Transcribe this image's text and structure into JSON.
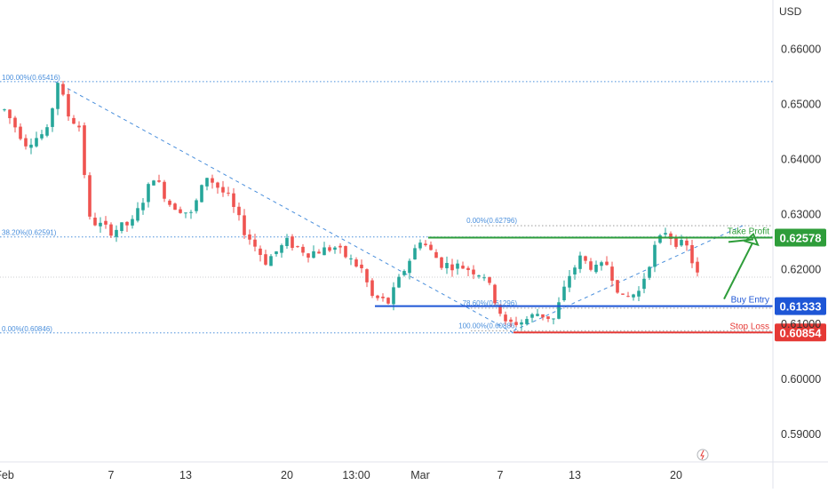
{
  "chart_data": {
    "type": "candlestick",
    "currency": "USD",
    "ylim": [
      0.585,
      0.669
    ],
    "y_ticks": [
      "0.66000",
      "0.65000",
      "0.64000",
      "0.63000",
      "0.62000",
      "0.61000",
      "0.60000",
      "0.59000"
    ],
    "y_tick_values": [
      0.66,
      0.65,
      0.64,
      0.63,
      0.62,
      0.61,
      0.6,
      0.59
    ],
    "x_ticks": [
      {
        "label": "Feb",
        "bar": 0
      },
      {
        "label": "7",
        "bar": 20
      },
      {
        "label": "13",
        "bar": 34
      },
      {
        "label": "20",
        "bar": 53
      },
      {
        "label": "13:00",
        "bar": 66
      },
      {
        "label": "Mar",
        "bar": 78
      },
      {
        "label": "7",
        "bar": 93
      },
      {
        "label": "13",
        "bar": 107
      },
      {
        "label": "20",
        "bar": 126
      }
    ],
    "bar_count": 140,
    "price_path": [
      [
        0,
        0.649
      ],
      [
        4,
        0.643
      ],
      [
        8,
        0.645
      ],
      [
        10,
        0.6542
      ],
      [
        12,
        0.648
      ],
      [
        14,
        0.646
      ],
      [
        16,
        0.629
      ],
      [
        20,
        0.627
      ],
      [
        24,
        0.6285
      ],
      [
        28,
        0.637
      ],
      [
        31,
        0.632
      ],
      [
        35,
        0.63
      ],
      [
        38,
        0.637
      ],
      [
        42,
        0.633
      ],
      [
        45,
        0.627
      ],
      [
        49,
        0.6215
      ],
      [
        53,
        0.625
      ],
      [
        57,
        0.623
      ],
      [
        62,
        0.624
      ],
      [
        67,
        0.62
      ],
      [
        69,
        0.615
      ],
      [
        72,
        0.614
      ],
      [
        75,
        0.62
      ],
      [
        78,
        0.6255
      ],
      [
        82,
        0.621
      ],
      [
        86,
        0.6205
      ],
      [
        90,
        0.619
      ],
      [
        94,
        0.61
      ],
      [
        97,
        0.6105
      ],
      [
        100,
        0.612
      ],
      [
        103,
        0.611
      ],
      [
        106,
        0.619
      ],
      [
        108,
        0.622
      ],
      [
        111,
        0.62
      ],
      [
        113,
        0.621
      ],
      [
        116,
        0.6145
      ],
      [
        119,
        0.616
      ],
      [
        122,
        0.624
      ],
      [
        124,
        0.627
      ],
      [
        126,
        0.625
      ],
      [
        128,
        0.624
      ],
      [
        130,
        0.619
      ]
    ],
    "fib_top": {
      "levels": [
        {
          "label": "100.00%(0.65416)",
          "value": 0.65416
        },
        {
          "label": "38.20%(0.62591)",
          "value": 0.62591
        },
        {
          "label": "0.00%(0.60846)",
          "value": 0.60846
        }
      ]
    },
    "fib_bottom": {
      "levels": [
        {
          "label": "0.00%(0.62796)",
          "value": 0.62796
        },
        {
          "label": "78.60%(0.61296)",
          "value": 0.61296
        },
        {
          "label": "100.00%(0.60886)",
          "value": 0.60886
        }
      ]
    },
    "levels": {
      "take_profit": {
        "label": "Take Profit",
        "value": 0.62578,
        "price_text": "0.62578",
        "color": "#2e9d3a"
      },
      "buy_entry": {
        "label": "Buy Entry",
        "value": 0.61333,
        "price_text": "0.61333",
        "color": "#1e56d6"
      },
      "stop_loss": {
        "label": "Stop Loss",
        "value": 0.60854,
        "price_text": "0.60854",
        "color": "#e53935"
      }
    },
    "last_price": 0.6186,
    "colors": {
      "up": "#26a69a",
      "down": "#ef5350",
      "fib": "#4a8fdc",
      "text": "#131722",
      "axis_text": "#333333"
    }
  }
}
